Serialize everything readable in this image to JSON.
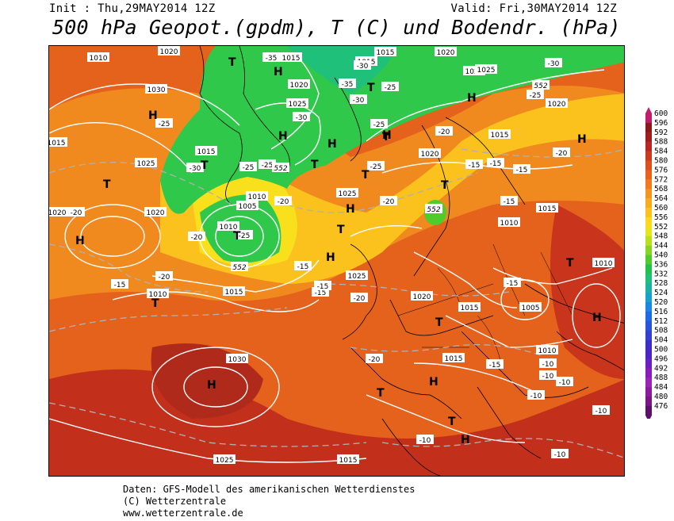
{
  "header": {
    "init": "Init : Thu,29MAY2014 12Z",
    "valid": "Valid: Fri,30MAY2014 12Z",
    "title": "500 hPa Geopot.(gpdm), T (C) und Bodendr. (hPa)"
  },
  "footer": {
    "line1": "Daten: GFS-Modell des amerikanischen Wetterdienstes",
    "line2": "(C) Wetterzentrale",
    "line3": "www.wetterzentrale.de"
  },
  "legend": {
    "levels": [
      "600",
      "596",
      "592",
      "588",
      "584",
      "580",
      "576",
      "572",
      "568",
      "564",
      "560",
      "556",
      "552",
      "548",
      "544",
      "540",
      "536",
      "532",
      "528",
      "524",
      "520",
      "516",
      "512",
      "508",
      "504",
      "500",
      "496",
      "492",
      "488",
      "484",
      "480",
      "476"
    ],
    "colors": [
      "#c21c6e",
      "#8a1a1a",
      "#a01d1d",
      "#b82626",
      "#cc3a1c",
      "#dd4f1c",
      "#e8621c",
      "#f07c1f",
      "#f5941f",
      "#f8ab1f",
      "#fbc21e",
      "#fdd81c",
      "#e8e61a",
      "#b8e11c",
      "#86d621",
      "#4fcc2c",
      "#22c24a",
      "#1fc07a",
      "#19b3a6",
      "#17a1cb",
      "#1888e0",
      "#1d6ae6",
      "#2753dd",
      "#3440d2",
      "#3a2fc8",
      "#4d24c4",
      "#6a1fc0",
      "#8a1cbc",
      "#9c22b8",
      "#8d1a9e",
      "#7a1487",
      "#5e0f6a"
    ]
  },
  "map": {
    "pressure_labels": [
      "1010",
      "1020",
      "1015",
      "1015",
      "1020",
      "1015",
      "1030",
      "1025",
      "1025",
      "1020",
      "1015",
      "1025",
      "1015",
      "1025",
      "1020",
      "1020",
      "1015",
      "1020",
      "1010",
      "1005",
      "1025",
      "1020",
      "1015",
      "1010",
      "1005",
      "1010",
      "1010",
      "1015",
      "1025",
      "1020",
      "1010",
      "1015",
      "1030",
      "1025",
      "1015",
      "1015",
      "1010"
    ],
    "temp_labels": [
      "-35",
      "-30",
      "-35",
      "-30",
      "-25",
      "-25",
      "-25",
      "-30",
      "-25",
      "-30",
      "-20",
      "-25",
      "-20",
      "-15",
      "-15",
      "-15",
      "-20",
      "-15",
      "-20",
      "-20",
      "-15",
      "-15",
      "-15",
      "-10",
      "-10",
      "-10",
      "-10",
      "-10",
      "-10",
      "-10",
      "-15",
      "-20",
      "-15",
      "-20",
      "-20",
      "-25",
      "-25",
      "-25",
      "-30",
      "-20",
      "-15"
    ],
    "geopot_labels": [
      "552",
      "552",
      "552",
      "552"
    ],
    "high_symbols": [
      "H",
      "H",
      "H",
      "H",
      "H",
      "H",
      "H",
      "H",
      "H",
      "H",
      "H",
      "H",
      "H",
      "H"
    ],
    "low_symbols": [
      "T",
      "T",
      "T",
      "T",
      "T",
      "T",
      "T",
      "T",
      "T",
      "T",
      "T",
      "T",
      "T",
      "T",
      "T"
    ]
  }
}
